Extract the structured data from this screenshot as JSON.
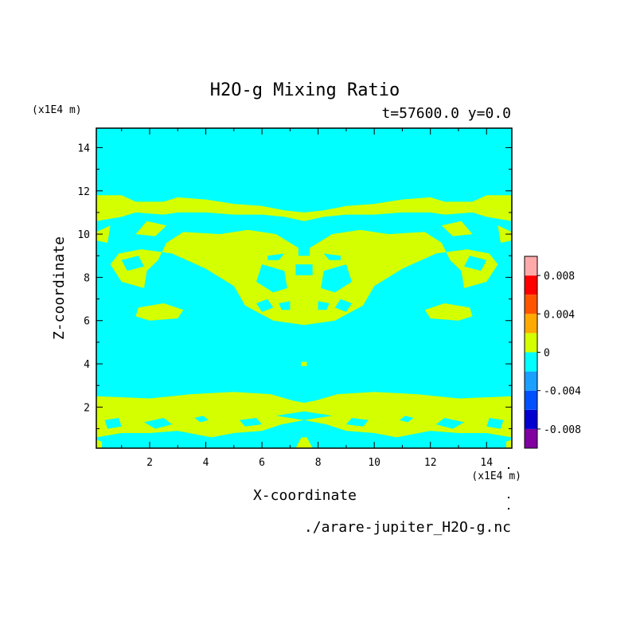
{
  "chart_data": {
    "type": "heatmap",
    "title": "H2O-g Mixing Ratio",
    "subtitle": "t=57600.0 y=0.0",
    "xlabel": "X-coordinate",
    "ylabel": "Z-coordinate",
    "x_unit": "(x1E4 m)",
    "y_unit": "(x1E4 m)",
    "x_ticks": [
      "2",
      "4",
      "6",
      "8",
      "10",
      "12",
      "14"
    ],
    "y_ticks": [
      "2",
      "4",
      "6",
      "8",
      "10",
      "12",
      "14"
    ],
    "xlim": [
      0.1,
      14.9
    ],
    "ylim": [
      0.1,
      14.9
    ],
    "source_file": "./arare-jupiter_H2O-g.nc",
    "background_color": "#00ffff",
    "region_color": "#d4ff00",
    "colorbar": {
      "levels": [
        -0.01,
        -0.008,
        -0.006,
        -0.004,
        -0.002,
        0,
        0.002,
        0.004,
        0.006,
        0.008,
        0.01
      ],
      "colors": [
        "#8000a0",
        "#0000d0",
        "#0050ff",
        "#1aa0ff",
        "#00ffff",
        "#d4ff00",
        "#ffaa00",
        "#ff5500",
        "#ff0000",
        "#ffaaaa"
      ],
      "tick_labels": [
        "0.008",
        "0.004",
        "0",
        "-0.004",
        "-0.008"
      ],
      "tick_values": [
        0.008,
        0.004,
        0,
        -0.004,
        -0.008
      ]
    },
    "regions": [
      [
        [
          0.1,
          11.8
        ],
        [
          1,
          11.8
        ],
        [
          1.5,
          11.5
        ],
        [
          2.5,
          11.5
        ],
        [
          3,
          11.7
        ],
        [
          4,
          11.6
        ],
        [
          5,
          11.4
        ],
        [
          6,
          11.3
        ],
        [
          6.8,
          11.1
        ],
        [
          7.5,
          11.0
        ],
        [
          8.2,
          11.1
        ],
        [
          9,
          11.3
        ],
        [
          10,
          11.4
        ],
        [
          11,
          11.6
        ],
        [
          12,
          11.7
        ],
        [
          12.5,
          11.5
        ],
        [
          13.5,
          11.5
        ],
        [
          14,
          11.8
        ],
        [
          14.9,
          11.8
        ],
        [
          14.9,
          10.6
        ],
        [
          14,
          10.8
        ],
        [
          13.5,
          11
        ],
        [
          12.5,
          10.9
        ],
        [
          12,
          11
        ],
        [
          11,
          11
        ],
        [
          10,
          10.9
        ],
        [
          9,
          10.9
        ],
        [
          8.2,
          10.8
        ],
        [
          7.5,
          10.6
        ],
        [
          6.8,
          10.8
        ],
        [
          6,
          10.9
        ],
        [
          5,
          10.9
        ],
        [
          4,
          11
        ],
        [
          3,
          11
        ],
        [
          2.5,
          10.9
        ],
        [
          1.5,
          11
        ],
        [
          1,
          10.8
        ],
        [
          0.1,
          10.6
        ]
      ],
      [
        [
          0.1,
          9.7
        ],
        [
          0.5,
          9.6
        ],
        [
          0.6,
          10.4
        ],
        [
          0.1,
          10.1
        ]
      ],
      [
        [
          14.9,
          9.7
        ],
        [
          14.5,
          9.6
        ],
        [
          14.4,
          10.4
        ],
        [
          14.9,
          10.1
        ]
      ],
      [
        [
          1.5,
          10.0
        ],
        [
          2.2,
          9.9
        ],
        [
          2.6,
          10.4
        ],
        [
          1.9,
          10.6
        ]
      ],
      [
        [
          13.5,
          10.0
        ],
        [
          12.8,
          9.9
        ],
        [
          12.4,
          10.4
        ],
        [
          13.1,
          10.6
        ]
      ],
      [
        [
          0.6,
          8.6
        ],
        [
          1,
          7.8
        ],
        [
          1.8,
          7.5
        ],
        [
          1.9,
          8.3
        ],
        [
          2.3,
          8.8
        ],
        [
          2.6,
          9.6
        ],
        [
          3.2,
          10.1
        ],
        [
          4.5,
          10.0
        ],
        [
          5.5,
          10.2
        ],
        [
          6.5,
          10.0
        ],
        [
          7.0,
          9.6
        ],
        [
          7.5,
          9.2
        ],
        [
          8.0,
          9.6
        ],
        [
          8.5,
          10.0
        ],
        [
          9.5,
          10.2
        ],
        [
          10.5,
          10.0
        ],
        [
          11.8,
          10.1
        ],
        [
          12.4,
          9.6
        ],
        [
          12.7,
          8.8
        ],
        [
          13.1,
          8.3
        ],
        [
          13.2,
          7.5
        ],
        [
          14,
          7.8
        ],
        [
          14.4,
          8.6
        ],
        [
          14.1,
          9.1
        ],
        [
          13.3,
          9.3
        ],
        [
          12.2,
          9.1
        ],
        [
          11,
          8.4
        ],
        [
          10,
          7.6
        ],
        [
          9.6,
          6.7
        ],
        [
          8.6,
          6.0
        ],
        [
          7.5,
          5.8
        ],
        [
          6.4,
          6.0
        ],
        [
          5.4,
          6.7
        ],
        [
          5,
          7.6
        ],
        [
          4,
          8.4
        ],
        [
          2.8,
          9.1
        ],
        [
          1.7,
          9.3
        ],
        [
          0.9,
          9.1
        ]
      ],
      [
        [
          1.5,
          6.2
        ],
        [
          2,
          6.0
        ],
        [
          3,
          6.1
        ],
        [
          3.2,
          6.5
        ],
        [
          2.5,
          6.8
        ],
        [
          1.6,
          6.6
        ]
      ],
      [
        [
          13.5,
          6.2
        ],
        [
          13,
          6.0
        ],
        [
          12,
          6.1
        ],
        [
          11.8,
          6.5
        ],
        [
          12.5,
          6.8
        ],
        [
          13.4,
          6.6
        ]
      ],
      [
        [
          0.1,
          2.5
        ],
        [
          2,
          2.4
        ],
        [
          3.5,
          2.6
        ],
        [
          5,
          2.7
        ],
        [
          6.3,
          2.6
        ],
        [
          7.1,
          2.3
        ],
        [
          7.5,
          2.2
        ],
        [
          7.9,
          2.3
        ],
        [
          8.7,
          2.6
        ],
        [
          10,
          2.7
        ],
        [
          11.5,
          2.6
        ],
        [
          13,
          2.4
        ],
        [
          14.9,
          2.5
        ],
        [
          14.9,
          0.6
        ],
        [
          14,
          0.8
        ],
        [
          13,
          0.8
        ],
        [
          12,
          0.9
        ],
        [
          10.8,
          0.6
        ],
        [
          10,
          0.8
        ],
        [
          9,
          0.9
        ],
        [
          8.3,
          1.2
        ],
        [
          7.5,
          1.4
        ],
        [
          6.7,
          1.2
        ],
        [
          6,
          0.9
        ],
        [
          5,
          0.8
        ],
        [
          4.2,
          0.6
        ],
        [
          3,
          0.9
        ],
        [
          2,
          0.8
        ],
        [
          1,
          0.8
        ],
        [
          0.1,
          0.6
        ]
      ],
      [
        [
          0.1,
          0.1
        ],
        [
          0.3,
          0.1
        ],
        [
          0.3,
          0.4
        ],
        [
          0.1,
          0.5
        ]
      ],
      [
        [
          14.9,
          0.1
        ],
        [
          14.7,
          0.1
        ],
        [
          14.7,
          0.4
        ],
        [
          14.9,
          0.5
        ]
      ],
      [
        [
          7.2,
          0.1
        ],
        [
          7.8,
          0.1
        ],
        [
          7.6,
          0.6
        ],
        [
          7.4,
          0.6
        ]
      ]
    ],
    "holes": [
      [
        [
          6.5,
          1.6
        ],
        [
          7.5,
          1.8
        ],
        [
          8.5,
          1.6
        ],
        [
          7.5,
          1.4
        ]
      ],
      [
        [
          1.8,
          1.3
        ],
        [
          2.5,
          1.5
        ],
        [
          2.8,
          1.2
        ],
        [
          2.2,
          1.0
        ]
      ],
      [
        [
          13.2,
          1.3
        ],
        [
          12.5,
          1.5
        ],
        [
          12.2,
          1.2
        ],
        [
          12.8,
          1.0
        ]
      ],
      [
        [
          3.6,
          1.5
        ],
        [
          3.9,
          1.6
        ],
        [
          4.1,
          1.4
        ],
        [
          3.8,
          1.3
        ]
      ],
      [
        [
          11.4,
          1.5
        ],
        [
          11.1,
          1.6
        ],
        [
          10.9,
          1.4
        ],
        [
          11.2,
          1.3
        ]
      ],
      [
        [
          5.2,
          1.4
        ],
        [
          5.8,
          1.5
        ],
        [
          6.0,
          1.2
        ],
        [
          5.4,
          1.1
        ]
      ],
      [
        [
          9.8,
          1.4
        ],
        [
          9.2,
          1.5
        ],
        [
          9.0,
          1.2
        ],
        [
          9.6,
          1.1
        ]
      ],
      [
        [
          0.4,
          1.4
        ],
        [
          0.9,
          1.5
        ],
        [
          1.0,
          1.1
        ],
        [
          0.5,
          1.0
        ]
      ],
      [
        [
          14.6,
          1.4
        ],
        [
          14.1,
          1.5
        ],
        [
          14.0,
          1.1
        ],
        [
          14.5,
          1.0
        ]
      ],
      [
        [
          6.0,
          8.6
        ],
        [
          6.8,
          8.3
        ],
        [
          6.9,
          7.5
        ],
        [
          6.4,
          7.3
        ],
        [
          5.8,
          7.8
        ]
      ],
      [
        [
          9.0,
          8.6
        ],
        [
          8.2,
          8.3
        ],
        [
          8.1,
          7.5
        ],
        [
          8.6,
          7.3
        ],
        [
          9.2,
          7.8
        ]
      ],
      [
        [
          7.2,
          8.6
        ],
        [
          7.8,
          8.6
        ],
        [
          7.8,
          8.1
        ],
        [
          7.2,
          8.1
        ]
      ],
      [
        [
          5.8,
          6.8
        ],
        [
          6.2,
          7.0
        ],
        [
          6.4,
          6.6
        ],
        [
          6.0,
          6.4
        ]
      ],
      [
        [
          9.2,
          6.8
        ],
        [
          8.8,
          7.0
        ],
        [
          8.6,
          6.6
        ],
        [
          9.0,
          6.4
        ]
      ],
      [
        [
          6.6,
          6.8
        ],
        [
          7.0,
          6.9
        ],
        [
          7.0,
          6.5
        ],
        [
          6.7,
          6.5
        ]
      ],
      [
        [
          8.4,
          6.8
        ],
        [
          8.0,
          6.9
        ],
        [
          8.0,
          6.5
        ],
        [
          8.3,
          6.5
        ]
      ],
      [
        [
          7.3,
          9.4
        ],
        [
          7.7,
          9.4
        ],
        [
          7.7,
          9.0
        ],
        [
          7.3,
          9.0
        ]
      ],
      [
        [
          6.2,
          9.0
        ],
        [
          6.8,
          9.1
        ],
        [
          6.6,
          8.8
        ],
        [
          6.2,
          8.8
        ]
      ],
      [
        [
          8.8,
          9.0
        ],
        [
          8.2,
          9.1
        ],
        [
          8.4,
          8.8
        ],
        [
          8.8,
          8.8
        ]
      ],
      [
        [
          1.0,
          8.8
        ],
        [
          1.6,
          9.0
        ],
        [
          1.8,
          8.5
        ],
        [
          1.2,
          8.3
        ]
      ],
      [
        [
          14.0,
          8.8
        ],
        [
          13.4,
          9.0
        ],
        [
          13.2,
          8.5
        ],
        [
          13.8,
          8.3
        ]
      ]
    ],
    "spots": [
      [
        [
          7.4,
          4.1
        ],
        [
          7.6,
          4.1
        ],
        [
          7.6,
          3.9
        ],
        [
          7.4,
          3.9
        ]
      ]
    ]
  }
}
